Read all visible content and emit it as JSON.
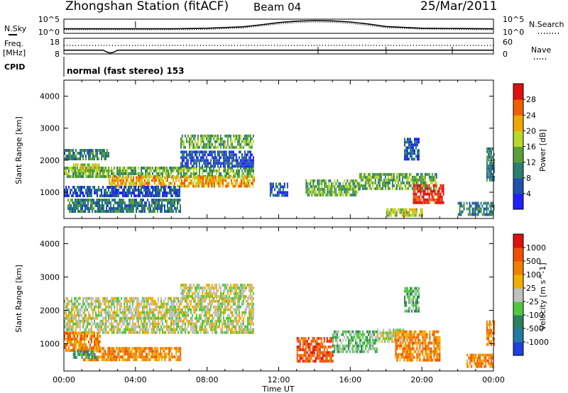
{
  "header": {
    "station": "Zhongshan Station (fitACF)",
    "beam": "Beam 04",
    "date": "25/Mar/2011",
    "mode": "normal (fast stereo) 153"
  },
  "panels": {
    "nsky_label": "N.Sky",
    "nsearch_label": "N.Search",
    "freq_label": "Freq.",
    "freq_unit": "[MHz]",
    "nave_label": "Nave",
    "cpid_label": "CPID",
    "nsky_ticks": [
      "10^5",
      "10^0"
    ],
    "nsearch_ticks": [
      "10^5",
      "10^0"
    ],
    "freq_ticks": [
      "18",
      "8"
    ],
    "nave_ticks": [
      "60",
      "0"
    ]
  },
  "chart_data": [
    {
      "type": "line",
      "name": "noise",
      "x": [
        0,
        2,
        4,
        6,
        8,
        10,
        11,
        12,
        13,
        14,
        15,
        16,
        17,
        18,
        20,
        22,
        24
      ],
      "series": [
        {
          "name": "N.Sky",
          "values": [
            1.6,
            1.6,
            1.6,
            1.6,
            1.8,
            2.3,
            3.0,
            3.8,
            4.3,
            4.5,
            4.4,
            4.0,
            3.3,
            2.4,
            1.8,
            1.7,
            1.6
          ]
        },
        {
          "name": "N.Search",
          "values": [
            1.3,
            1.3,
            1.3,
            1.3,
            1.4,
            1.9,
            2.6,
            3.3,
            3.8,
            4.0,
            3.9,
            3.5,
            2.8,
            2.0,
            1.5,
            1.4,
            1.3
          ]
        }
      ],
      "ylim": [
        0,
        5
      ]
    },
    {
      "type": "line",
      "name": "frequency-nave",
      "x": [
        0,
        2.2,
        2.4,
        2.6,
        2.8,
        3.0,
        24
      ],
      "series": [
        {
          "name": "Freq.",
          "values": [
            10.4,
            10.4,
            9.2,
            8.6,
            9.2,
            10.4,
            10.4
          ]
        }
      ],
      "ylim": [
        8,
        18
      ]
    },
    {
      "type": "heatmap",
      "title": "Power",
      "xlabel": "",
      "ylabel": "Slant Range [km]",
      "xlim": [
        0,
        24
      ],
      "ylim": [
        180,
        4500
      ],
      "x_ticks": [
        "00:00",
        "04:00",
        "08:00",
        "12:00",
        "16:00",
        "20:00",
        "00:00"
      ],
      "y_ticks": [
        "1000",
        "2000",
        "3000",
        "4000"
      ],
      "colorbar_label": "Power [dB]",
      "colorbar_ticks": [
        "4",
        "8",
        "12",
        "16",
        "20",
        "24",
        "28"
      ],
      "colorbar_colors": [
        "#2020ff",
        "#2050b0",
        "#2a7f70",
        "#58a03a",
        "#b8d82a",
        "#f0a800",
        "#f06000",
        "#e01010"
      ],
      "regions": [
        {
          "t0": 0.0,
          "t1": 10.6,
          "r0": 1450,
          "r1": 1800,
          "level": 3
        },
        {
          "t0": 2.5,
          "t1": 10.6,
          "r0": 1200,
          "r1": 1500,
          "level": 5
        },
        {
          "t0": 0.0,
          "t1": 2.5,
          "r0": 2000,
          "r1": 2350,
          "level": 2
        },
        {
          "t0": 0.5,
          "t1": 2.0,
          "r0": 1650,
          "r1": 1900,
          "level": 4
        },
        {
          "t0": 0.0,
          "t1": 6.5,
          "r0": 900,
          "r1": 1200,
          "level": 1
        },
        {
          "t0": 0.2,
          "t1": 6.5,
          "r0": 400,
          "r1": 800,
          "level": 2
        },
        {
          "t0": 6.5,
          "t1": 10.6,
          "r0": 1800,
          "r1": 2300,
          "level": 1
        },
        {
          "t0": 6.5,
          "t1": 10.6,
          "r0": 2400,
          "r1": 2800,
          "level": 3
        },
        {
          "t0": 11.5,
          "t1": 12.5,
          "r0": 900,
          "r1": 1300,
          "level": 1
        },
        {
          "t0": 13.5,
          "t1": 16.5,
          "r0": 900,
          "r1": 1400,
          "level": 3
        },
        {
          "t0": 16.5,
          "t1": 20.8,
          "r0": 1150,
          "r1": 1600,
          "level": 3
        },
        {
          "t0": 19.5,
          "t1": 21.2,
          "r0": 650,
          "r1": 1250,
          "level": 7
        },
        {
          "t0": 18.0,
          "t1": 20.0,
          "r0": 250,
          "r1": 500,
          "level": 4
        },
        {
          "t0": 19.0,
          "t1": 19.8,
          "r0": 2000,
          "r1": 2700,
          "level": 1
        },
        {
          "t0": 22.0,
          "t1": 24.0,
          "r0": 300,
          "r1": 700,
          "level": 2
        },
        {
          "t0": 23.6,
          "t1": 24.0,
          "r0": 1400,
          "r1": 2400,
          "level": 2
        }
      ]
    },
    {
      "type": "heatmap",
      "title": "Velocity",
      "xlabel": "Time UT",
      "ylabel": "Slant Range [km]",
      "xlim": [
        0,
        24
      ],
      "ylim": [
        180,
        4500
      ],
      "x_ticks": [
        "00:00",
        "04:00",
        "08:00",
        "12:00",
        "16:00",
        "20:00",
        "00:00"
      ],
      "y_ticks": [
        "1000",
        "2000",
        "3000",
        "4000"
      ],
      "colorbar_label": "Velocity [m s^-1]",
      "colorbar_ticks": [
        "1000",
        "500",
        "100",
        "25",
        "-25",
        "-100",
        "-500",
        "-1000"
      ],
      "colorbar_colors": [
        "#2040e0",
        "#1f7aa8",
        "#2a8060",
        "#50c840",
        "#c0c0c0",
        "#f0b000",
        "#f08000",
        "#f05000",
        "#e01010"
      ],
      "regions": [
        {
          "t0": 0.0,
          "t1": 10.6,
          "r0": 1350,
          "r1": 2400,
          "level": 4
        },
        {
          "t0": 6.5,
          "t1": 10.6,
          "r0": 2400,
          "r1": 2800,
          "level": 4
        },
        {
          "t0": 0.0,
          "t1": 2.0,
          "r0": 800,
          "r1": 1350,
          "level": 6
        },
        {
          "t0": 1.0,
          "t1": 6.5,
          "r0": 500,
          "r1": 900,
          "level": 6
        },
        {
          "t0": 0.5,
          "t1": 1.8,
          "r0": 550,
          "r1": 800,
          "level": 2
        },
        {
          "t0": 13.0,
          "t1": 15.0,
          "r0": 500,
          "r1": 1200,
          "level": 7
        },
        {
          "t0": 15.0,
          "t1": 17.5,
          "r0": 800,
          "r1": 1400,
          "level": 3
        },
        {
          "t0": 17.5,
          "t1": 19.0,
          "r0": 1100,
          "r1": 1450,
          "level": 4
        },
        {
          "t0": 18.5,
          "t1": 21.0,
          "r0": 500,
          "r1": 1400,
          "level": 6
        },
        {
          "t0": 19.0,
          "t1": 19.8,
          "r0": 2000,
          "r1": 2700,
          "level": 3
        },
        {
          "t0": 22.5,
          "t1": 24.0,
          "r0": 300,
          "r1": 700,
          "level": 6
        },
        {
          "t0": 23.6,
          "t1": 24.0,
          "r0": 1000,
          "r1": 1700,
          "level": 6
        }
      ]
    }
  ]
}
